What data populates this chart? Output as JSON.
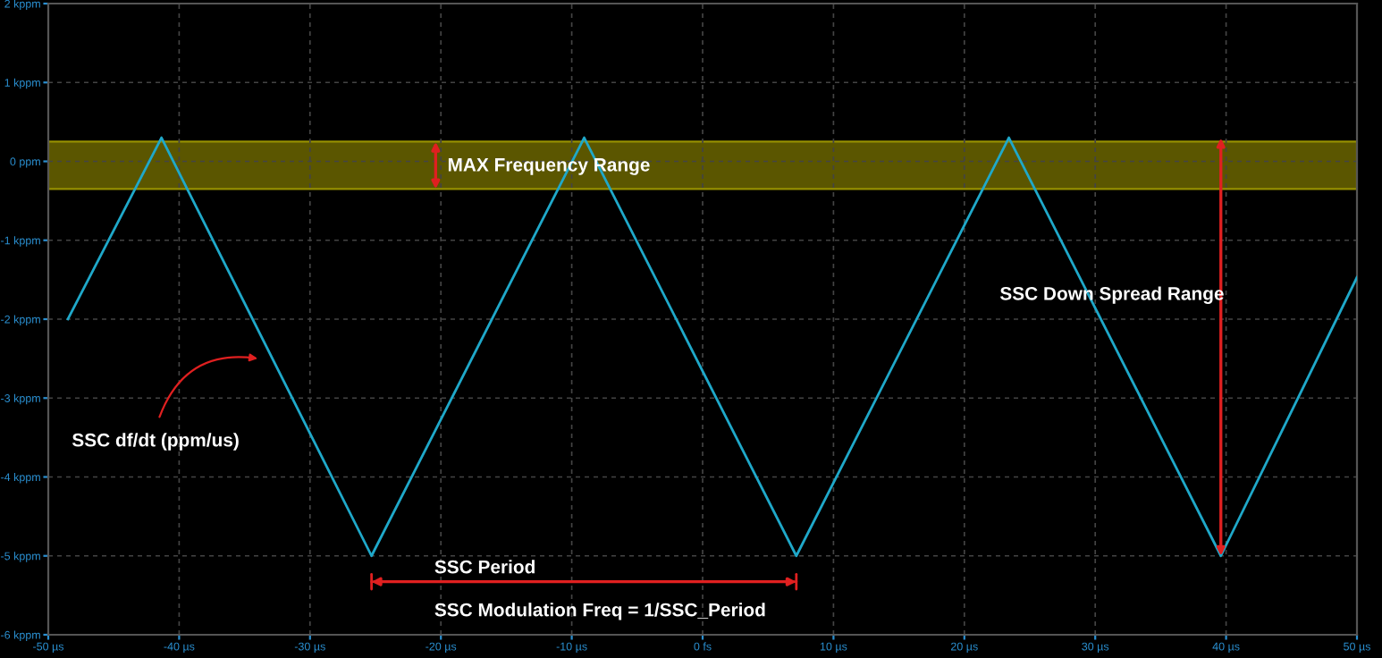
{
  "chart_data": {
    "type": "line",
    "x": [
      -48.5,
      -41.35,
      -25.3,
      -9.05,
      7.16,
      23.4,
      39.6,
      50
    ],
    "series": [
      {
        "color": "#1fa8c9",
        "values": [
          -2,
          0.3,
          -5,
          0.3,
          -5,
          0.3,
          -5,
          -1.47
        ]
      }
    ],
    "xlim": [
      -50,
      50
    ],
    "ylim": [
      -6,
      2
    ],
    "xticks": [
      {
        "value": -50,
        "label": "-50 µs"
      },
      {
        "value": -40,
        "label": "-40 µs"
      },
      {
        "value": -30,
        "label": "-30 µs"
      },
      {
        "value": -20,
        "label": "-20 µs"
      },
      {
        "value": -10,
        "label": "-10 µs"
      },
      {
        "value": 0,
        "label": "0 fs"
      },
      {
        "value": 10,
        "label": "10 µs"
      },
      {
        "value": 20,
        "label": "20 µs"
      },
      {
        "value": 30,
        "label": "30 µs"
      },
      {
        "value": 40,
        "label": "40 µs"
      },
      {
        "value": 50,
        "label": "50 µs"
      }
    ],
    "yticks": [
      {
        "value": 2,
        "label": "2 kppm"
      },
      {
        "value": 1,
        "label": "1 kppm"
      },
      {
        "value": 0,
        "label": "0 ppm"
      },
      {
        "value": -1,
        "label": "-1 kppm"
      },
      {
        "value": -2,
        "label": "-2 kppm"
      },
      {
        "value": -3,
        "label": "-3 kppm"
      },
      {
        "value": -4,
        "label": "-4 kppm"
      },
      {
        "value": -5,
        "label": "-5 kppm"
      },
      {
        "value": -6,
        "label": "-6 kppm"
      }
    ],
    "bands": [
      {
        "axis": "y",
        "from": -0.35,
        "to": 0.25,
        "color": "#6b6500"
      }
    ],
    "annotations": [
      "MAX Frequency Range",
      "SSC Down Spread Range",
      "SSC df/dt (ppm/us)",
      "SSC Period",
      "SSC Modulation Freq = 1/SSC_Period"
    ],
    "grid": true,
    "legend": false,
    "marker": "none",
    "line_style": "solid"
  }
}
